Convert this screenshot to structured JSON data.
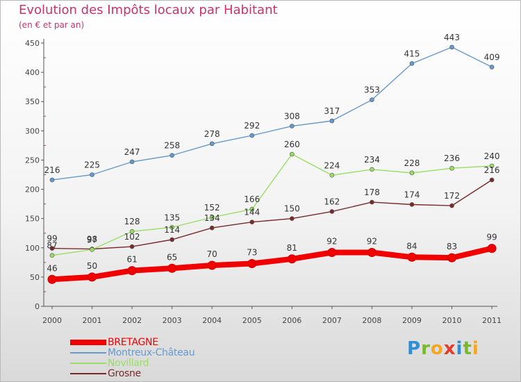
{
  "header": {
    "title": "Evolution des Impôts locaux par Habitant",
    "subtitle": "(en € et par an)"
  },
  "brand": {
    "letters": [
      {
        "char": "P",
        "color": "#2f8fd6"
      },
      {
        "char": "r",
        "color": "#7ab82e"
      },
      {
        "char": "o",
        "color": "#f5a623"
      },
      {
        "char": "x",
        "color": "#e23c2c"
      },
      {
        "char": "i",
        "color": "#2f8fd6"
      },
      {
        "char": "t",
        "color": "#7ab82e"
      },
      {
        "char": "i",
        "color": "#f5a623"
      }
    ]
  },
  "chart_data": {
    "type": "line",
    "title": "Evolution des Impôts locaux par Habitant",
    "subtitle": "(en € et par an)",
    "x": [
      2000,
      2001,
      2002,
      2003,
      2004,
      2005,
      2006,
      2007,
      2008,
      2009,
      2010,
      2011
    ],
    "x_tick_labels": [
      "2000",
      "2001",
      "2002",
      "2003",
      "2004",
      "2005",
      "2006",
      "2007",
      "2008",
      "2009",
      "2010",
      "2011"
    ],
    "ylim": [
      0,
      450
    ],
    "y_ticks": [
      0,
      50,
      100,
      150,
      200,
      250,
      300,
      350,
      400,
      450
    ],
    "grid": false,
    "legend_position": "bottom-left",
    "series": [
      {
        "name": "BRETAGNE",
        "color": "#f00000",
        "values": [
          46,
          50,
          61,
          65,
          70,
          73,
          81,
          92,
          92,
          84,
          83,
          99
        ]
      },
      {
        "name": "Montreux-Château",
        "color": "#6699cc",
        "values": [
          216,
          225,
          247,
          258,
          278,
          292,
          308,
          317,
          353,
          415,
          443,
          409
        ]
      },
      {
        "name": "Novillard",
        "color": "#99dd66",
        "values": [
          87,
          97,
          128,
          135,
          152,
          166,
          260,
          224,
          234,
          228,
          236,
          240
        ]
      },
      {
        "name": "Grosne",
        "color": "#7a2a2a",
        "values": [
          99,
          98,
          102,
          114,
          134,
          144,
          150,
          162,
          178,
          174,
          172,
          216
        ]
      }
    ]
  }
}
